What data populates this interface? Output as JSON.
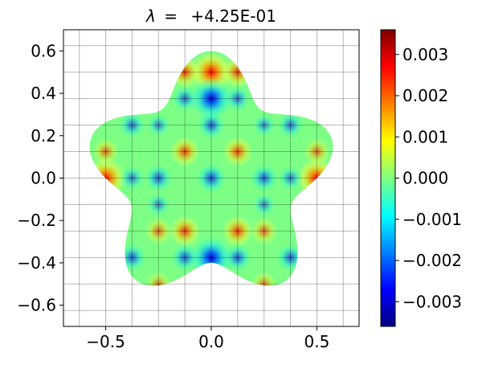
{
  "chart_data": {
    "type": "heatmap",
    "title": "λ =  +4.25E-01",
    "title_parts": {
      "symbol": "λ",
      "eq": "=",
      "value": "+4.25E-01"
    },
    "xlabel": "",
    "ylabel": "",
    "xlim": [
      -0.7,
      0.7
    ],
    "ylim": [
      -0.7,
      0.7
    ],
    "x_ticks": [
      -0.5,
      0.0,
      0.5
    ],
    "x_tick_labels": [
      "−0.5",
      "0.0",
      "0.5"
    ],
    "y_ticks": [
      0.6,
      0.4,
      0.2,
      0.0,
      -0.2,
      -0.4,
      -0.6
    ],
    "y_tick_labels": [
      "0.6",
      "0.4",
      "0.2",
      "0.0",
      "−0.2",
      "−0.4",
      "−0.6"
    ],
    "grid": true,
    "grid_spacing": 0.125,
    "colormap": "jet",
    "domain_shape": "five-lobed star (r = 0.5 + 0.1·cos(5θ − π/2))",
    "colorbar": {
      "range": [
        -0.0036,
        0.0036
      ],
      "ticks": [
        0.003,
        0.002,
        0.001,
        0.0,
        -0.001,
        -0.002,
        -0.003
      ],
      "tick_labels": [
        "0.003",
        "0.002",
        "0.001",
        "0.000",
        "−0.001",
        "−0.002",
        "−0.003"
      ],
      "colors": [
        "#000080",
        "#0000ff",
        "#0080ff",
        "#00ffff",
        "#80ff80",
        "#ffff00",
        "#ff8000",
        "#ff0000",
        "#800000"
      ]
    },
    "field_extremes": {
      "max": [
        {
          "x": 0.0,
          "y": 0.5,
          "value": 0.0036
        },
        {
          "x": -0.5,
          "y": 0.0,
          "value": 0.0035
        },
        {
          "x": 0.5,
          "y": 0.0,
          "value": 0.0035
        },
        {
          "x": -0.125,
          "y": 0.5,
          "value": 0.0022
        },
        {
          "x": 0.125,
          "y": 0.5,
          "value": 0.0022
        },
        {
          "x": -0.125,
          "y": 0.125,
          "value": 0.002
        },
        {
          "x": 0.125,
          "y": 0.125,
          "value": 0.002
        },
        {
          "x": -0.125,
          "y": -0.25,
          "value": 0.0022
        },
        {
          "x": 0.125,
          "y": -0.25,
          "value": 0.0022
        },
        {
          "x": -0.25,
          "y": -0.25,
          "value": 0.0015
        },
        {
          "x": 0.25,
          "y": -0.25,
          "value": 0.0015
        },
        {
          "x": -0.5,
          "y": 0.125,
          "value": 0.0014
        },
        {
          "x": 0.5,
          "y": 0.125,
          "value": 0.0014
        },
        {
          "x": -0.25,
          "y": -0.5,
          "value": 0.0012
        },
        {
          "x": 0.25,
          "y": -0.5,
          "value": 0.0012
        }
      ],
      "min": [
        {
          "x": 0.0,
          "y": 0.375,
          "value": -0.0036
        },
        {
          "x": 0.0,
          "y": -0.375,
          "value": -0.0036
        },
        {
          "x": 0.0,
          "y": 0.25,
          "value": -0.0015
        },
        {
          "x": 0.0,
          "y": 0.0,
          "value": -0.0018
        },
        {
          "x": -0.25,
          "y": 0.0,
          "value": -0.0015
        },
        {
          "x": 0.25,
          "y": 0.0,
          "value": -0.0015
        },
        {
          "x": -0.375,
          "y": 0.0,
          "value": -0.001
        },
        {
          "x": 0.375,
          "y": 0.0,
          "value": -0.001
        },
        {
          "x": -0.125,
          "y": 0.375,
          "value": -0.0012
        },
        {
          "x": 0.125,
          "y": 0.375,
          "value": -0.0012
        },
        {
          "x": -0.25,
          "y": 0.25,
          "value": -0.0008
        },
        {
          "x": 0.25,
          "y": 0.25,
          "value": -0.0008
        },
        {
          "x": -0.375,
          "y": 0.25,
          "value": -0.0012
        },
        {
          "x": 0.375,
          "y": 0.25,
          "value": -0.0012
        },
        {
          "x": -0.125,
          "y": -0.375,
          "value": -0.0015
        },
        {
          "x": 0.125,
          "y": -0.375,
          "value": -0.0015
        },
        {
          "x": -0.375,
          "y": -0.375,
          "value": -0.0015
        },
        {
          "x": 0.375,
          "y": -0.375,
          "value": -0.0015
        },
        {
          "x": -0.25,
          "y": -0.125,
          "value": -0.0008
        },
        {
          "x": 0.25,
          "y": -0.125,
          "value": -0.0008
        }
      ]
    }
  }
}
